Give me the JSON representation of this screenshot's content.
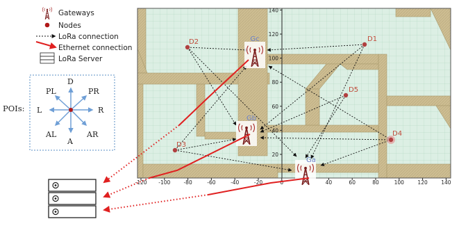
{
  "legend": {
    "gateways": "Gateways",
    "nodes": "Nodes",
    "lora": "LoRa connection",
    "ethernet": "Ethernet connection",
    "server": "LoRa Server"
  },
  "pois": {
    "title": "POIs:",
    "dirs": {
      "D": "D",
      "PL": "PL",
      "PR": "PR",
      "L": "L",
      "R": "R",
      "AL": "AL",
      "AR": "AR",
      "A": "A"
    }
  },
  "map": {
    "x_ticks": [
      "-120",
      "-100",
      "-80",
      "-60",
      "-40",
      "-20",
      "0",
      "20",
      "40",
      "60",
      "80",
      "100",
      "120",
      "140"
    ],
    "y_ticks": [
      "20",
      "40",
      "60",
      "80",
      "100",
      "120",
      "140"
    ]
  },
  "gateways": [
    {
      "id": "Gc",
      "label": "Gc"
    },
    {
      "id": "Gb",
      "label": "Gb"
    },
    {
      "id": "Ga",
      "label": "Ga"
    }
  ],
  "nodes": [
    {
      "id": "D1",
      "label": "D1"
    },
    {
      "id": "D2",
      "label": "D2"
    },
    {
      "id": "D3",
      "label": "D3"
    },
    {
      "id": "D4",
      "label": "D4"
    },
    {
      "id": "D5",
      "label": "D5"
    }
  ],
  "colors": {
    "grass": "#dcefe4",
    "road": "#cfbf94",
    "node": "#b04040",
    "gateway_label": "#6a80c8",
    "node_label": "#c04a3a",
    "ethernet": "#e02020",
    "arrow": "#222222",
    "poi_arrow": "#6f9fd6"
  }
}
